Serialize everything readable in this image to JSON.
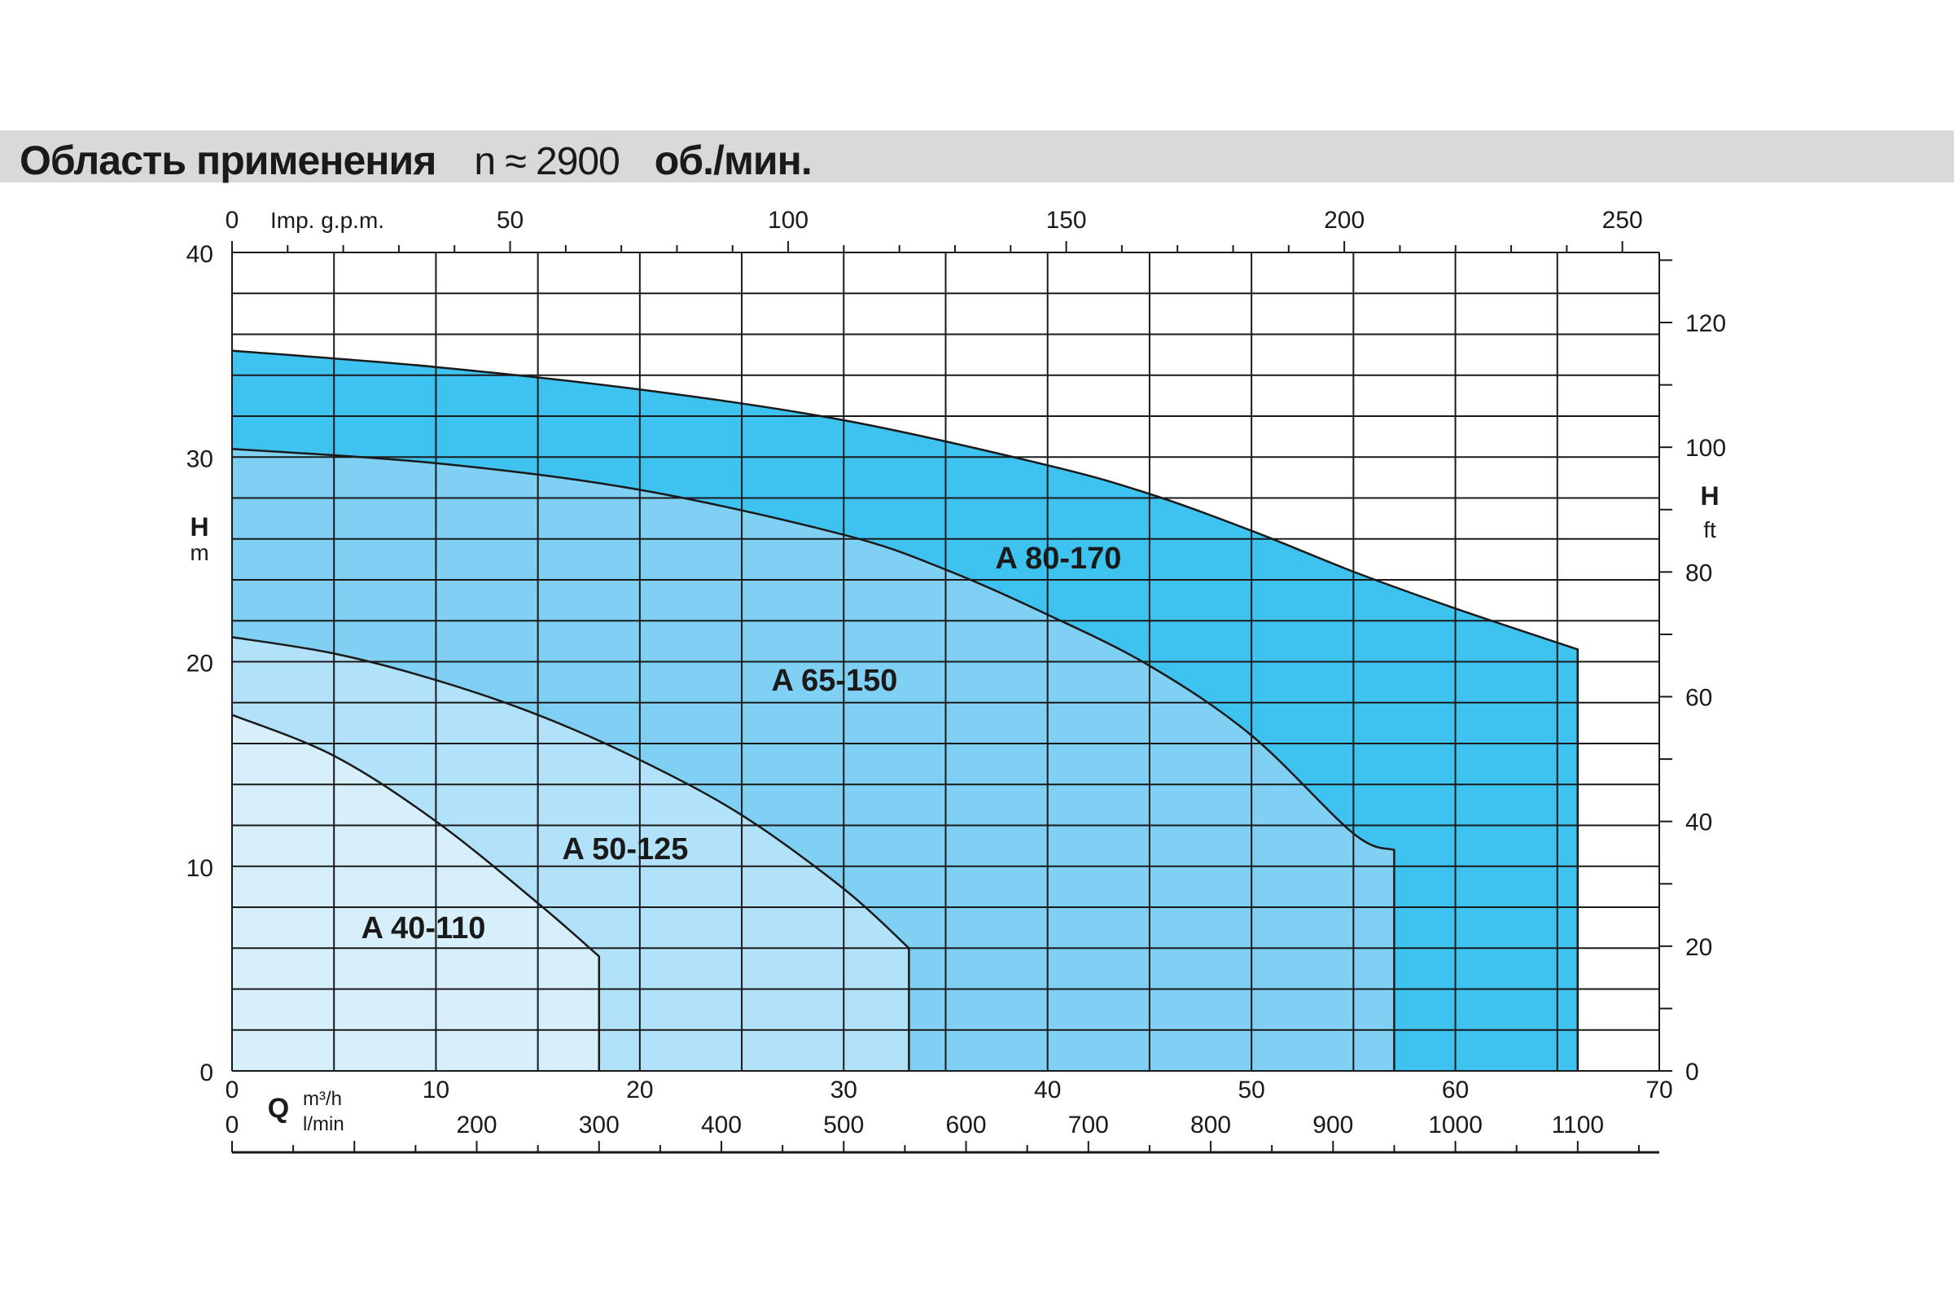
{
  "header": {
    "title": "Область применения",
    "speed": "n ≈ 2900",
    "unit": "об./мин."
  },
  "colors": {
    "band": "#d9d9d9",
    "A 80-170": "#3ec3f0",
    "A 65-150": "#80d0f4",
    "A 50-125": "#b2e2f9",
    "A 40-110": "#d6effb",
    "grid": "#1a1a1a"
  },
  "chart_data": {
    "type": "area",
    "x_unit_label": "m³/h",
    "y_unit_label": "m",
    "x_axis": {
      "title": "Q",
      "range": [
        0,
        70
      ],
      "ticks": [
        "0",
        "10",
        "20",
        "30",
        "40",
        "50",
        "60",
        "70"
      ],
      "unit": "m³/h"
    },
    "x_axis_lmin": {
      "unit": "l/min",
      "ticks": [
        "0",
        "200",
        "300",
        "400",
        "500",
        "600",
        "700",
        "800",
        "900",
        "1000",
        "1100"
      ]
    },
    "x_axis_top": {
      "unit": "Imp. g.p.m.",
      "ticks": [
        "0",
        "50",
        "100",
        "150",
        "200",
        "250"
      ]
    },
    "y_axis": {
      "title": "H",
      "unit": "m",
      "range": [
        0,
        40
      ],
      "ticks": [
        "0",
        "10",
        "20",
        "30",
        "40"
      ]
    },
    "y_axis_right": {
      "title": "H",
      "unit": "ft",
      "ticks": [
        "0",
        "20",
        "40",
        "60",
        "80",
        "100",
        "120"
      ]
    },
    "grid": true,
    "series": [
      {
        "name": "A 80-170",
        "x": [
          0,
          10,
          20,
          30,
          40,
          45,
          50,
          55,
          60,
          66
        ],
        "y": [
          35.2,
          34.4,
          33.3,
          31.8,
          29.6,
          28.2,
          26.4,
          24.4,
          22.6,
          20.6
        ]
      },
      {
        "name": "A 65-150",
        "x": [
          0,
          10,
          20,
          30,
          35,
          40,
          45,
          50,
          55,
          57
        ],
        "y": [
          30.4,
          29.7,
          28.4,
          26.2,
          24.5,
          22.3,
          19.8,
          16.4,
          11.6,
          10.8
        ]
      },
      {
        "name": "A 50-125",
        "x": [
          0,
          5,
          10,
          15,
          20,
          25,
          30,
          33.2
        ],
        "y": [
          21.2,
          20.4,
          19.1,
          17.4,
          15.2,
          12.5,
          8.9,
          6.0
        ]
      },
      {
        "name": "A 40-110",
        "x": [
          0,
          5,
          10,
          15,
          18
        ],
        "y": [
          17.4,
          15.4,
          12.2,
          8.2,
          5.6
        ]
      }
    ]
  }
}
